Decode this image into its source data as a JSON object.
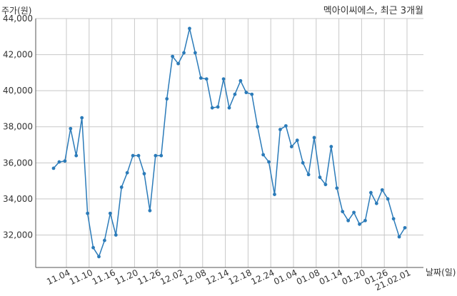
{
  "chart_data": {
    "type": "line",
    "title": "멕아이씨에스, 최근 3개월",
    "ylabel": "주가(원)",
    "xlabel": "날짜(일)",
    "ylim": [
      30200,
      44000
    ],
    "grid": true,
    "yticks": [
      "32,000",
      "34,000",
      "36,000",
      "38,000",
      "40,000",
      "42,000",
      "44,000"
    ],
    "xticks": [
      "11.04",
      "11.10",
      "11.16",
      "11.20",
      "11.26",
      "12.02",
      "12.08",
      "12.14",
      "12.18",
      "12.24",
      "01.04",
      "01.08",
      "01.14",
      "01.20",
      "01.26",
      "21.02.01"
    ],
    "series": [
      {
        "color": "#2b7bb9",
        "values": [
          35700,
          36050,
          36100,
          37900,
          36400,
          38500,
          33200,
          31300,
          30800,
          31700,
          33200,
          32000,
          34650,
          35450,
          36400,
          36400,
          35400,
          33350,
          36400,
          36400,
          39550,
          41900,
          41500,
          42100,
          43450,
          42100,
          40700,
          40650,
          39050,
          39100,
          40650,
          39050,
          39800,
          40550,
          39900,
          39800,
          38000,
          36450,
          36050,
          34250,
          37850,
          38050,
          36900,
          37250,
          36000,
          35350,
          37400,
          35200,
          34800,
          36900,
          34600,
          33300,
          32800,
          33250,
          32600,
          32800,
          34350,
          33750,
          34500,
          34000,
          32900,
          31900,
          32400
        ]
      }
    ]
  }
}
